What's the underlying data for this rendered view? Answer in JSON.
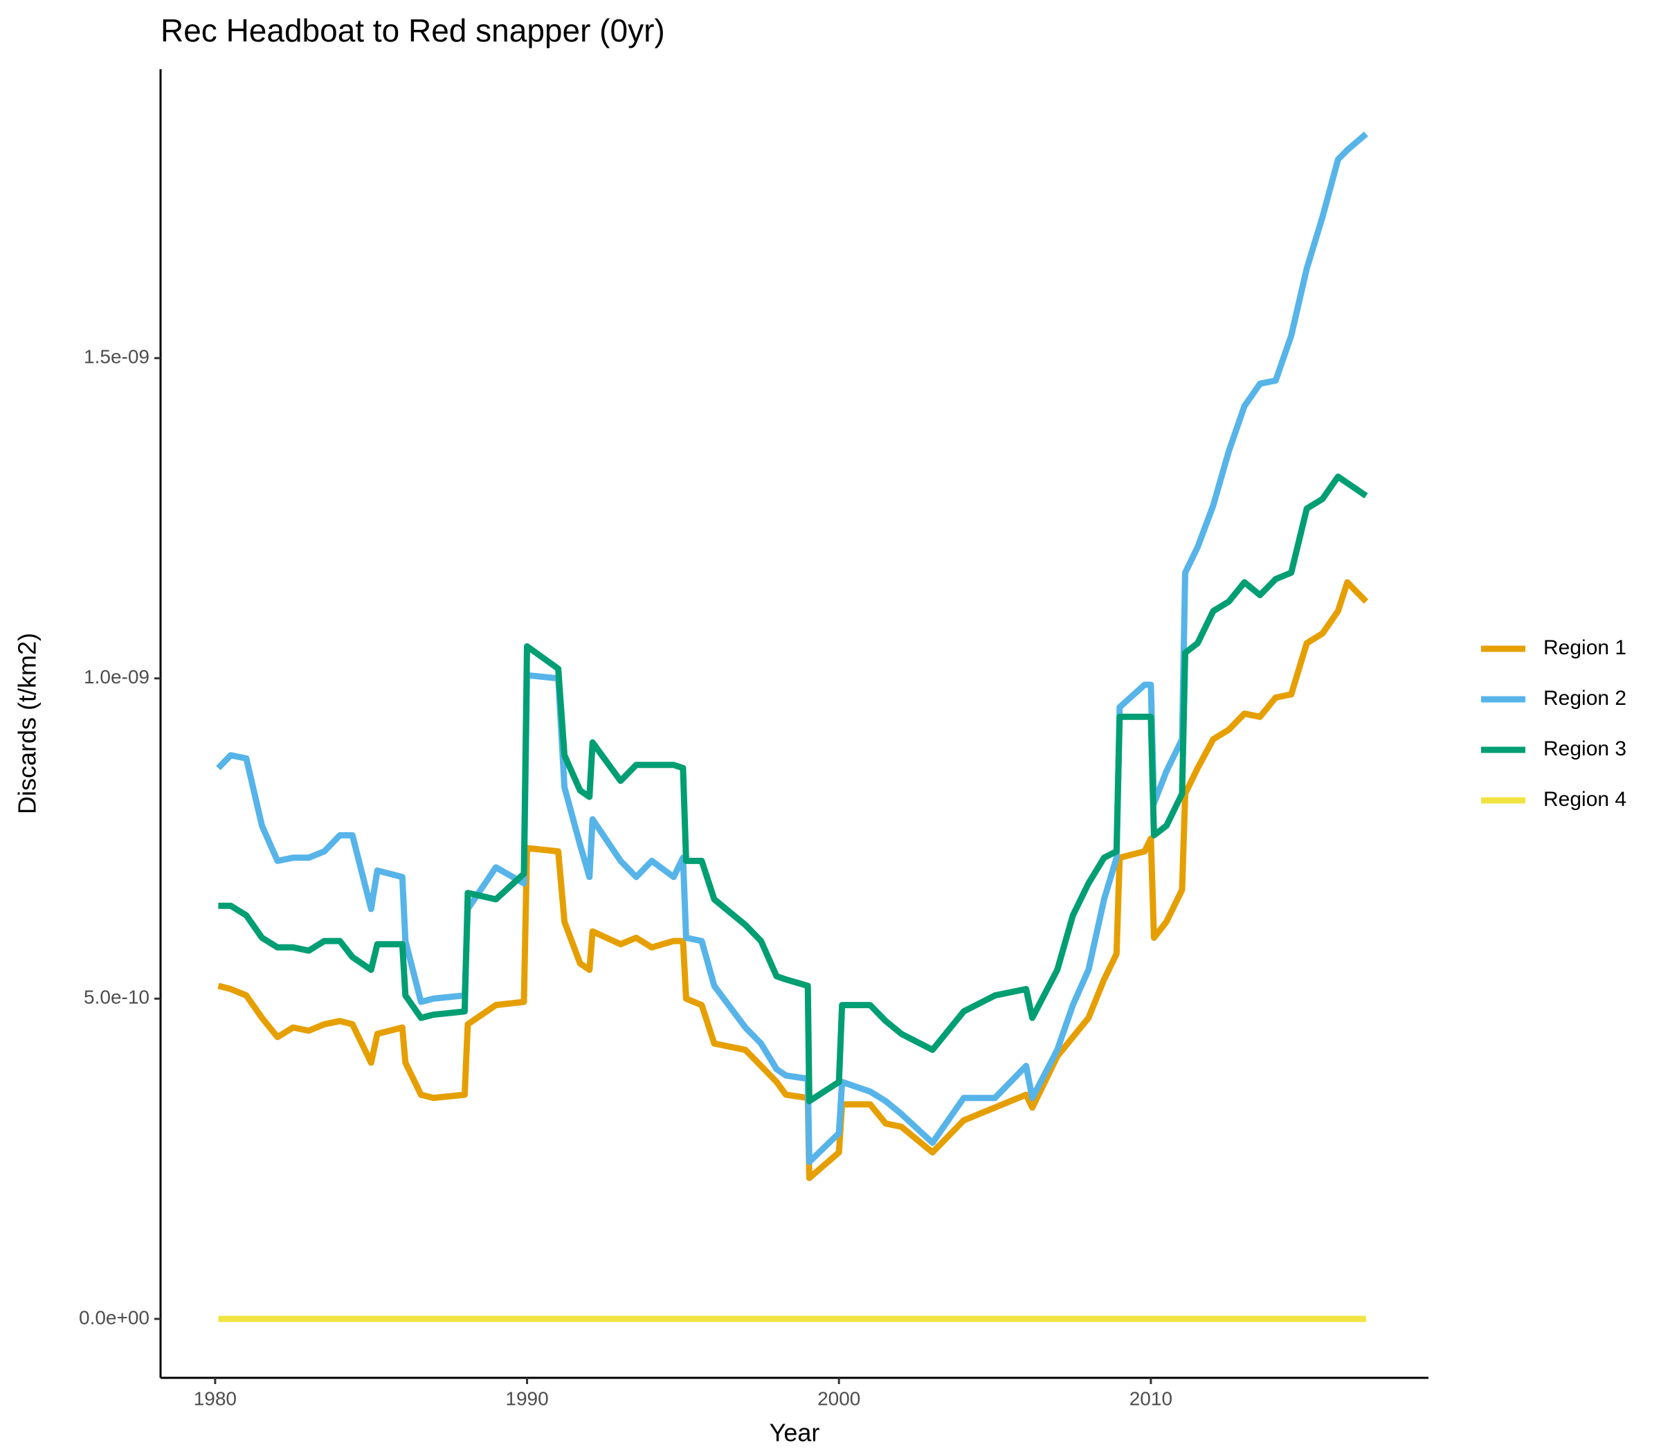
{
  "chart_data": {
    "type": "line",
    "title": "Rec Headboat to Red snapper (0yr)",
    "x_label": "Year",
    "y_label": "Discards (t/km2)",
    "legend": "right",
    "xlim": [
      1978.25,
      2018.9
    ],
    "xticks": [
      1980,
      1990,
      2000,
      2010
    ],
    "ylim": [
      -9.2e-11,
      1.951e-09
    ],
    "yticks": [
      {
        "value": 0,
        "label": "0.0e+00"
      },
      {
        "value": 5e-10,
        "label": "5.0e-10"
      },
      {
        "value": 1e-09,
        "label": "1.0e-09"
      },
      {
        "value": 1.5e-09,
        "label": "1.5e-09"
      }
    ],
    "x": [
      1980.1,
      1980.5,
      1981,
      1981.5,
      1982,
      1982.5,
      1983,
      1983.5,
      1984,
      1984.4,
      1985,
      1985.2,
      1986,
      1986.1,
      1986.6,
      1987,
      1988,
      1988.1,
      1989,
      1989.9,
      1990,
      1991,
      1991.2,
      1991.7,
      1992,
      1992.1,
      1993,
      1993.5,
      1994,
      1994.7,
      1995,
      1995.1,
      1995.6,
      1996,
      1997,
      1997.5,
      1998,
      1998.3,
      1999,
      1999.05,
      2000,
      2000.1,
      2001,
      2001.5,
      2002,
      2003,
      2004,
      2005,
      2006,
      2006.2,
      2007,
      2007.5,
      2008,
      2008.5,
      2008.9,
      2009,
      2009.8,
      2010,
      2010.1,
      2010.5,
      2011,
      2011.1,
      2011.5,
      2012,
      2012.5,
      2013,
      2013.5,
      2014,
      2014.5,
      2015,
      2015.5,
      2016,
      2016.3,
      2016.9
    ],
    "series": [
      {
        "name": "Region 1",
        "color": "#E69F00",
        "values": [
          5.2e-10,
          5.15e-10,
          5.05e-10,
          4.7e-10,
          4.4e-10,
          4.55e-10,
          4.5e-10,
          4.6e-10,
          4.65e-10,
          4.6e-10,
          4e-10,
          4.45e-10,
          4.55e-10,
          4e-10,
          3.5e-10,
          3.45e-10,
          3.5e-10,
          4.6e-10,
          4.9e-10,
          4.95e-10,
          7.35e-10,
          7.3e-10,
          6.2e-10,
          5.55e-10,
          5.45e-10,
          6.05e-10,
          5.85e-10,
          5.95e-10,
          5.8e-10,
          5.9e-10,
          5.9e-10,
          5e-10,
          4.9e-10,
          4.3e-10,
          4.2e-10,
          3.95e-10,
          3.7e-10,
          3.5e-10,
          3.45e-10,
          2.2e-10,
          2.6e-10,
          3.35e-10,
          3.35e-10,
          3.05e-10,
          3e-10,
          2.6e-10,
          3.1e-10,
          3.3e-10,
          3.5e-10,
          3.3e-10,
          4.1e-10,
          4.4e-10,
          4.7e-10,
          5.3e-10,
          5.7e-10,
          7.2e-10,
          7.3e-10,
          7.5e-10,
          5.95e-10,
          6.2e-10,
          6.7e-10,
          8.2e-10,
          8.6e-10,
          9.05e-10,
          9.2e-10,
          9.45e-10,
          9.4e-10,
          9.7e-10,
          9.75e-10,
          1.055e-09,
          1.07e-09,
          1.105e-09,
          1.15e-09,
          1.12e-09
        ]
      },
      {
        "name": "Region 2",
        "color": "#56B4E9",
        "values": [
          8.6e-10,
          8.8e-10,
          8.75e-10,
          7.7e-10,
          7.15e-10,
          7.2e-10,
          7.2e-10,
          7.3e-10,
          7.55e-10,
          7.55e-10,
          6.4e-10,
          7e-10,
          6.9e-10,
          5.9e-10,
          4.95e-10,
          5e-10,
          5.05e-10,
          6.4e-10,
          7.05e-10,
          6.8e-10,
          1.005e-09,
          1e-09,
          8.3e-10,
          7.4e-10,
          6.9e-10,
          7.8e-10,
          7.15e-10,
          6.9e-10,
          7.15e-10,
          6.9e-10,
          7.2e-10,
          5.95e-10,
          5.9e-10,
          5.2e-10,
          4.55e-10,
          4.3e-10,
          3.9e-10,
          3.8e-10,
          3.75e-10,
          2.45e-10,
          2.9e-10,
          3.7e-10,
          3.55e-10,
          3.4e-10,
          3.2e-10,
          2.75e-10,
          3.45e-10,
          3.45e-10,
          3.95e-10,
          3.45e-10,
          4.2e-10,
          4.9e-10,
          5.45e-10,
          6.55e-10,
          7.2e-10,
          9.55e-10,
          9.9e-10,
          9.9e-10,
          8.05e-10,
          8.55e-10,
          9.05e-10,
          1.165e-09,
          1.205e-09,
          1.27e-09,
          1.355e-09,
          1.425e-09,
          1.46e-09,
          1.465e-09,
          1.535e-09,
          1.64e-09,
          1.72e-09,
          1.81e-09,
          1.825e-09,
          1.85e-09
        ]
      },
      {
        "name": "Region 3",
        "color": "#009E73",
        "values": [
          6.45e-10,
          6.45e-10,
          6.3e-10,
          5.95e-10,
          5.8e-10,
          5.8e-10,
          5.75e-10,
          5.9e-10,
          5.9e-10,
          5.65e-10,
          5.45e-10,
          5.85e-10,
          5.85e-10,
          5.05e-10,
          4.7e-10,
          4.75e-10,
          4.8e-10,
          6.65e-10,
          6.55e-10,
          6.95e-10,
          1.05e-09,
          1.015e-09,
          8.8e-10,
          8.25e-10,
          8.15e-10,
          9e-10,
          8.4e-10,
          8.65e-10,
          8.65e-10,
          8.65e-10,
          8.6e-10,
          7.15e-10,
          7.15e-10,
          6.55e-10,
          6.15e-10,
          5.9e-10,
          5.35e-10,
          5.3e-10,
          5.2e-10,
          3.4e-10,
          3.7e-10,
          4.9e-10,
          4.9e-10,
          4.65e-10,
          4.45e-10,
          4.2e-10,
          4.8e-10,
          5.05e-10,
          5.15e-10,
          4.7e-10,
          5.45e-10,
          6.3e-10,
          6.8e-10,
          7.2e-10,
          7.3e-10,
          9.4e-10,
          9.4e-10,
          9.4e-10,
          7.55e-10,
          7.7e-10,
          8.2e-10,
          1.04e-09,
          1.055e-09,
          1.105e-09,
          1.12e-09,
          1.15e-09,
          1.13e-09,
          1.155e-09,
          1.165e-09,
          1.265e-09,
          1.28e-09,
          1.315e-09,
          1.305e-09,
          1.285e-09
        ]
      },
      {
        "name": "Region 4",
        "color": "#F0E442",
        "values": [
          0,
          0,
          0,
          0,
          0,
          0,
          0,
          0,
          0,
          0,
          0,
          0,
          0,
          0,
          0,
          0,
          0,
          0,
          0,
          0,
          0,
          0,
          0,
          0,
          0,
          0,
          0,
          0,
          0,
          0,
          0,
          0,
          0,
          0,
          0,
          0,
          0,
          0,
          0,
          0,
          0,
          0,
          0,
          0,
          0,
          0,
          0,
          0,
          0,
          0,
          0,
          0,
          0,
          0,
          0,
          0,
          0,
          0,
          0,
          0,
          0,
          0,
          0,
          0,
          0,
          0,
          0,
          0,
          0,
          0,
          0,
          0,
          0,
          0
        ]
      }
    ]
  }
}
